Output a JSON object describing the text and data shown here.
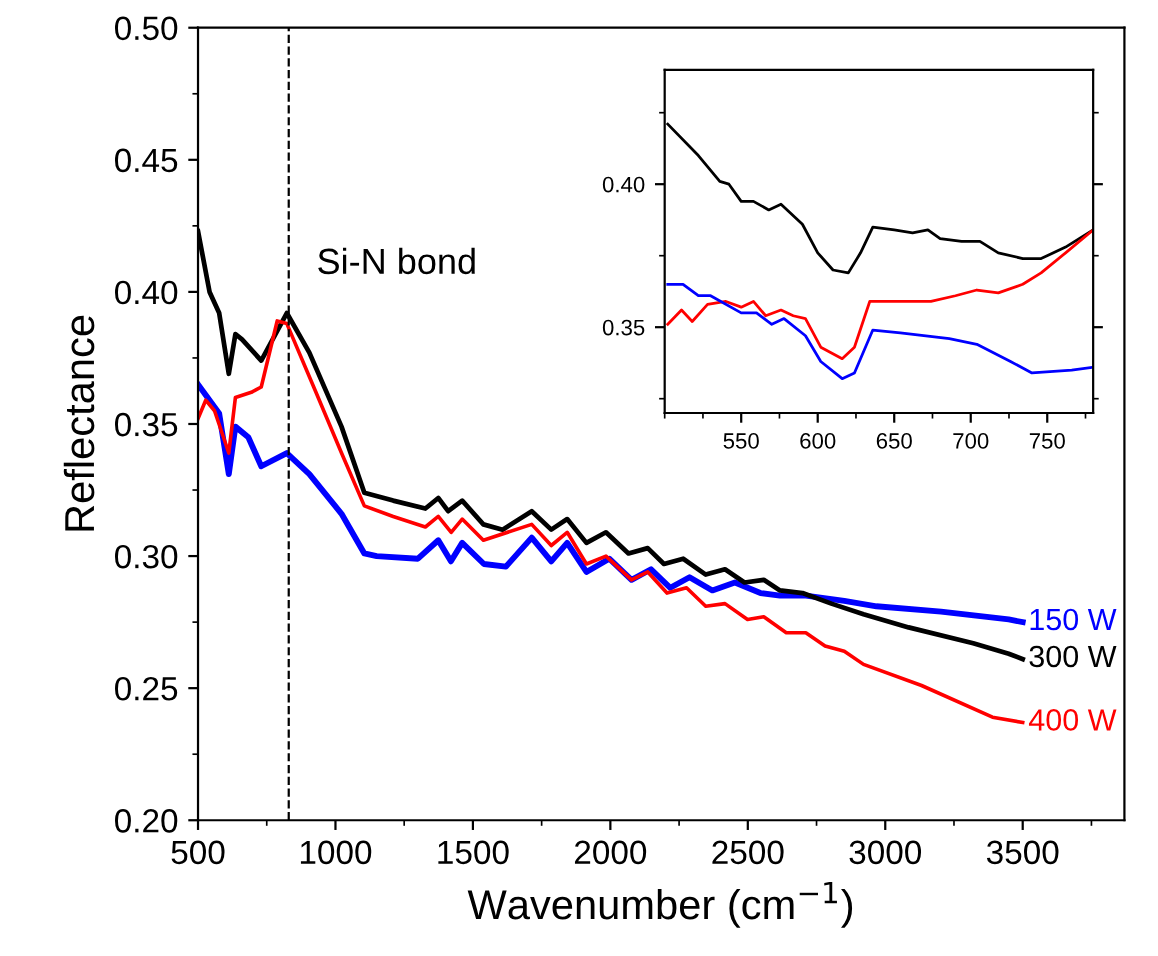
{
  "chart_data": [
    {
      "type": "line",
      "xlabel": "Wavenumber (cm$^{−1}$)",
      "ylabel": "Reflectance",
      "xlim": [
        500,
        3870
      ],
      "ylim": [
        0.2,
        0.5
      ],
      "xticks": [
        500,
        1000,
        1500,
        2000,
        2500,
        3000,
        3500
      ],
      "yticks": [
        {
          "value": 0.2,
          "label": "0.20"
        },
        0.25,
        {
          "value": 0.3,
          "label": "0.30"
        },
        0.35,
        {
          "value": 0.4,
          "label": "0.40"
        },
        0.45,
        {
          "value": 0.5,
          "label": "0.50"
        }
      ],
      "grid": false,
      "legend": false,
      "marker": "none",
      "line_style": "solid",
      "ref_lines": [
        {
          "axis": "x",
          "value": 830,
          "label": "Si-N bond",
          "color": "#000000",
          "line_style": "dashed"
        }
      ],
      "series": [
        {
          "name": "150 W",
          "color": "#0000ff",
          "x": [
            500,
            528,
            577,
            612,
            636,
            683,
            730,
            823,
            905,
            1022,
            1105,
            1150,
            1300,
            1374,
            1420,
            1461,
            1540,
            1620,
            1714,
            1785,
            1843,
            1913,
            1996,
            2077,
            2148,
            2218,
            2288,
            2371,
            2453,
            2546,
            2617,
            2711,
            2851,
            2968,
            3203,
            3449,
            3500
          ],
          "values": [
            0.365,
            0.361,
            0.354,
            0.331,
            0.349,
            0.345,
            0.334,
            0.339,
            0.331,
            0.316,
            0.301,
            0.3,
            0.299,
            0.306,
            0.298,
            0.305,
            0.297,
            0.296,
            0.307,
            0.298,
            0.305,
            0.294,
            0.299,
            0.291,
            0.295,
            0.288,
            0.292,
            0.287,
            0.29,
            0.286,
            0.285,
            0.285,
            0.283,
            0.281,
            0.279,
            0.276,
            0.275
          ]
        },
        {
          "name": "300 W",
          "color": "#000000",
          "x": [
            500,
            542,
            577,
            612,
            636,
            660,
            730,
            823,
            905,
            1022,
            1105,
            1210,
            1327,
            1374,
            1410,
            1461,
            1538,
            1608,
            1714,
            1785,
            1843,
            1913,
            1984,
            2066,
            2136,
            2195,
            2265,
            2347,
            2417,
            2488,
            2558,
            2617,
            2699,
            2804,
            2921,
            3085,
            3320,
            3449,
            3500
          ],
          "values": [
            0.423,
            0.4,
            0.392,
            0.369,
            0.384,
            0.382,
            0.374,
            0.392,
            0.377,
            0.349,
            0.324,
            0.321,
            0.318,
            0.322,
            0.317,
            0.321,
            0.312,
            0.31,
            0.317,
            0.31,
            0.314,
            0.305,
            0.309,
            0.301,
            0.303,
            0.297,
            0.299,
            0.293,
            0.295,
            0.29,
            0.291,
            0.287,
            0.286,
            0.282,
            0.278,
            0.273,
            0.267,
            0.263,
            0.261
          ]
        },
        {
          "name": "400 W",
          "color": "#ff0000",
          "x": [
            500,
            528,
            560,
            612,
            636,
            694,
            730,
            788,
            823,
            929,
            1022,
            1105,
            1210,
            1327,
            1374,
            1421,
            1461,
            1538,
            1714,
            1785,
            1843,
            1913,
            1984,
            2077,
            2136,
            2206,
            2277,
            2347,
            2417,
            2499,
            2558,
            2640,
            2711,
            2781,
            2851,
            2921,
            3132,
            3390,
            3500
          ],
          "values": [
            0.352,
            0.359,
            0.355,
            0.339,
            0.36,
            0.362,
            0.364,
            0.389,
            0.388,
            0.362,
            0.339,
            0.319,
            0.315,
            0.311,
            0.315,
            0.309,
            0.314,
            0.306,
            0.312,
            0.304,
            0.309,
            0.297,
            0.3,
            0.291,
            0.294,
            0.286,
            0.288,
            0.281,
            0.282,
            0.276,
            0.277,
            0.271,
            0.271,
            0.266,
            0.264,
            0.259,
            0.251,
            0.239,
            0.237
          ]
        }
      ]
    },
    {
      "type": "line",
      "xlim": [
        500,
        780
      ],
      "ylim": [
        0.32,
        0.44
      ],
      "xticks": [
        550,
        600,
        650,
        700,
        750
      ],
      "yticks": [
        0.35,
        {
          "value": 0.4,
          "label": "0.40"
        }
      ],
      "grid": false,
      "legend": false,
      "marker": "none",
      "line_style": "solid",
      "series": [
        {
          "color": "#000000",
          "x": [
            502,
            522,
            536,
            542,
            550,
            558,
            568,
            576,
            590,
            600,
            610,
            620,
            628,
            636,
            650,
            662,
            672,
            680,
            694,
            706,
            718,
            734,
            746,
            762,
            780
          ],
          "values": [
            0.421,
            0.41,
            0.401,
            0.4,
            0.394,
            0.394,
            0.391,
            0.393,
            0.386,
            0.376,
            0.37,
            0.369,
            0.376,
            0.385,
            0.384,
            0.383,
            0.384,
            0.381,
            0.38,
            0.38,
            0.376,
            0.374,
            0.374,
            0.378,
            0.384
          ]
        },
        {
          "color": "#ff0000",
          "x": [
            502,
            511,
            518,
            528,
            540,
            550,
            558,
            566,
            576,
            584,
            592,
            602,
            616,
            624,
            634,
            646,
            674,
            690,
            704,
            718,
            734,
            746,
            762,
            780
          ],
          "values": [
            0.351,
            0.356,
            0.352,
            0.358,
            0.359,
            0.357,
            0.359,
            0.354,
            0.356,
            0.354,
            0.353,
            0.343,
            0.339,
            0.343,
            0.359,
            0.359,
            0.359,
            0.361,
            0.363,
            0.362,
            0.365,
            0.369,
            0.376,
            0.384
          ]
        },
        {
          "color": "#0000ff",
          "x": [
            502,
            512,
            522,
            530,
            550,
            560,
            570,
            578,
            592,
            602,
            616,
            624,
            636,
            654,
            686,
            704,
            726,
            740,
            766,
            780
          ],
          "values": [
            0.365,
            0.365,
            0.361,
            0.361,
            0.355,
            0.355,
            0.351,
            0.353,
            0.347,
            0.338,
            0.332,
            0.334,
            0.349,
            0.348,
            0.346,
            0.344,
            0.338,
            0.334,
            0.335,
            0.336
          ]
        }
      ]
    }
  ]
}
